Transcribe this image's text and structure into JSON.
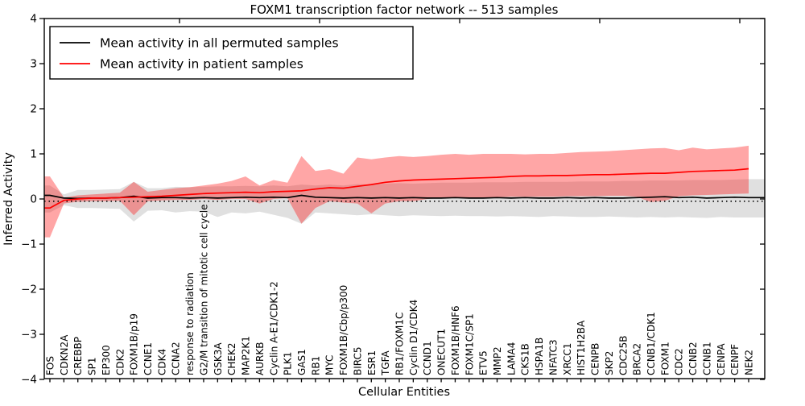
{
  "figure": {
    "title": "FOXM1 transcription factor network -- 513 samples",
    "xlabel": "Cellular Entities",
    "ylabel": "Inferred Activity"
  },
  "legend": {
    "entries": [
      {
        "label": "Mean activity in all permuted samples",
        "color": "#000000"
      },
      {
        "label": "Mean activity in patient samples",
        "color": "#ff0000"
      }
    ]
  },
  "chart_data": {
    "type": "line",
    "title": "FOXM1 transcription factor network -- 513 samples",
    "xlabel": "Cellular Entities",
    "ylabel": "Inferred Activity",
    "ylim": [
      -4,
      4
    ],
    "yticks": [
      -4,
      -3,
      -2,
      -1,
      0,
      1,
      2,
      3,
      4
    ],
    "grid": false,
    "legend_position": "upper left",
    "baseline_dotted_y": -0.05,
    "categories": [
      "FOS",
      "CDKN2A",
      "CREBBP",
      "SP1",
      "EP300",
      "CDK2",
      "FOXM1B/p19",
      "CCNE1",
      "CDK4",
      "CCNA2",
      "response to radiation",
      "G2/M transition of mitotic cell cycle",
      "GSK3A",
      "CHEK2",
      "MAP2K1",
      "AURKB",
      "Cyclin A-E1/CDK1-2",
      "PLK1",
      "GAS1",
      "RB1",
      "MYC",
      "FOXM1B/Cbp/p300",
      "BIRC5",
      "ESR1",
      "TGFA",
      "RB1/FOXM1C",
      "Cyclin D1/CDK4",
      "CCND1",
      "ONECUT1",
      "FOXM1B/HNF6",
      "FOXM1C/SP1",
      "ETV5",
      "MMP2",
      "LAMA4",
      "CKS1B",
      "HSPA1B",
      "NFATC3",
      "XRCC1",
      "HIST1H2BA",
      "CENPB",
      "SKP2",
      "CDC25B",
      "BRCA2",
      "CCNB1/CDK1",
      "FOXM1",
      "CDC2",
      "CCNB2",
      "CCNB1",
      "CENPA",
      "CENPF",
      "NEK2"
    ],
    "series": [
      {
        "name": "Mean activity in all permuted samples",
        "color": "#000000",
        "band_color": "rgba(0,0,0,0.12)",
        "extend_to_right_edge": true,
        "values": [
          0.08,
          0.02,
          0.01,
          0.02,
          0.02,
          0.03,
          0.06,
          0.02,
          0.03,
          0.03,
          0.02,
          0.03,
          0.02,
          0.03,
          0.04,
          0.03,
          0.04,
          0.03,
          0.08,
          0.04,
          0.03,
          0.02,
          0.03,
          0.02,
          0.03,
          0.02,
          0.03,
          0.02,
          0.02,
          0.03,
          0.02,
          0.02,
          0.03,
          0.02,
          0.03,
          0.02,
          0.02,
          0.03,
          0.02,
          0.03,
          0.02,
          0.02,
          0.03,
          0.04,
          0.05,
          0.03,
          0.04,
          0.02,
          0.03,
          0.04,
          0.03
        ],
        "band_hi": [
          0.3,
          0.1,
          0.2,
          0.2,
          0.21,
          0.22,
          0.38,
          0.24,
          0.24,
          0.27,
          0.26,
          0.27,
          0.28,
          0.28,
          0.29,
          0.28,
          0.3,
          0.28,
          0.32,
          0.3,
          0.32,
          0.3,
          0.33,
          0.32,
          0.34,
          0.35,
          0.34,
          0.35,
          0.36,
          0.36,
          0.36,
          0.37,
          0.37,
          0.37,
          0.38,
          0.38,
          0.38,
          0.38,
          0.39,
          0.39,
          0.39,
          0.4,
          0.4,
          0.41,
          0.41,
          0.41,
          0.42,
          0.42,
          0.42,
          0.43,
          0.44
        ],
        "band_lo": [
          -0.3,
          -0.14,
          -0.2,
          -0.2,
          -0.21,
          -0.22,
          -0.5,
          -0.26,
          -0.25,
          -0.3,
          -0.27,
          -0.28,
          -0.4,
          -0.3,
          -0.32,
          -0.28,
          -0.35,
          -0.42,
          -0.55,
          -0.3,
          -0.32,
          -0.34,
          -0.36,
          -0.34,
          -0.36,
          -0.38,
          -0.36,
          -0.37,
          -0.38,
          -0.37,
          -0.38,
          -0.38,
          -0.39,
          -0.38,
          -0.39,
          -0.4,
          -0.38,
          -0.39,
          -0.4,
          -0.4,
          -0.39,
          -0.4,
          -0.41,
          -0.4,
          -0.41,
          -0.4,
          -0.41,
          -0.42,
          -0.4,
          -0.41,
          -0.41
        ]
      },
      {
        "name": "Mean activity in patient samples",
        "color": "#ff0000",
        "band_color": "rgba(255,0,0,0.35)",
        "extend_to_right_edge": false,
        "values": [
          -0.2,
          -0.03,
          0.0,
          0.02,
          0.02,
          0.03,
          0.04,
          0.05,
          0.06,
          0.08,
          0.1,
          0.12,
          0.13,
          0.14,
          0.15,
          0.14,
          0.16,
          0.17,
          0.18,
          0.22,
          0.25,
          0.24,
          0.28,
          0.32,
          0.37,
          0.4,
          0.42,
          0.43,
          0.44,
          0.45,
          0.46,
          0.47,
          0.48,
          0.5,
          0.51,
          0.51,
          0.52,
          0.52,
          0.53,
          0.54,
          0.54,
          0.55,
          0.56,
          0.57,
          0.57,
          0.59,
          0.61,
          0.62,
          0.63,
          0.64,
          0.67
        ],
        "band_hi": [
          0.5,
          0.03,
          0.08,
          0.1,
          0.12,
          0.14,
          0.38,
          0.16,
          0.2,
          0.24,
          0.26,
          0.3,
          0.34,
          0.4,
          0.5,
          0.3,
          0.42,
          0.36,
          0.95,
          0.62,
          0.66,
          0.56,
          0.92,
          0.88,
          0.92,
          0.95,
          0.93,
          0.95,
          0.98,
          1.0,
          0.98,
          1.0,
          1.0,
          1.0,
          0.99,
          1.0,
          1.0,
          1.02,
          1.04,
          1.05,
          1.06,
          1.08,
          1.1,
          1.12,
          1.13,
          1.08,
          1.14,
          1.1,
          1.12,
          1.14,
          1.18
        ],
        "band_lo": [
          -0.85,
          -0.1,
          -0.06,
          -0.05,
          -0.05,
          -0.04,
          -0.36,
          -0.05,
          -0.03,
          -0.02,
          -0.02,
          0.0,
          -0.02,
          0.0,
          0.0,
          -0.1,
          0.0,
          0.02,
          -0.55,
          -0.2,
          -0.05,
          -0.08,
          -0.1,
          -0.32,
          -0.1,
          -0.05,
          -0.05,
          0.0,
          0.02,
          0.02,
          0.03,
          0.03,
          0.04,
          0.05,
          0.05,
          0.05,
          0.05,
          0.06,
          0.06,
          0.06,
          0.07,
          0.07,
          0.05,
          -0.07,
          -0.04,
          0.06,
          0.08,
          0.09,
          0.1,
          0.11,
          0.12
        ]
      }
    ]
  }
}
